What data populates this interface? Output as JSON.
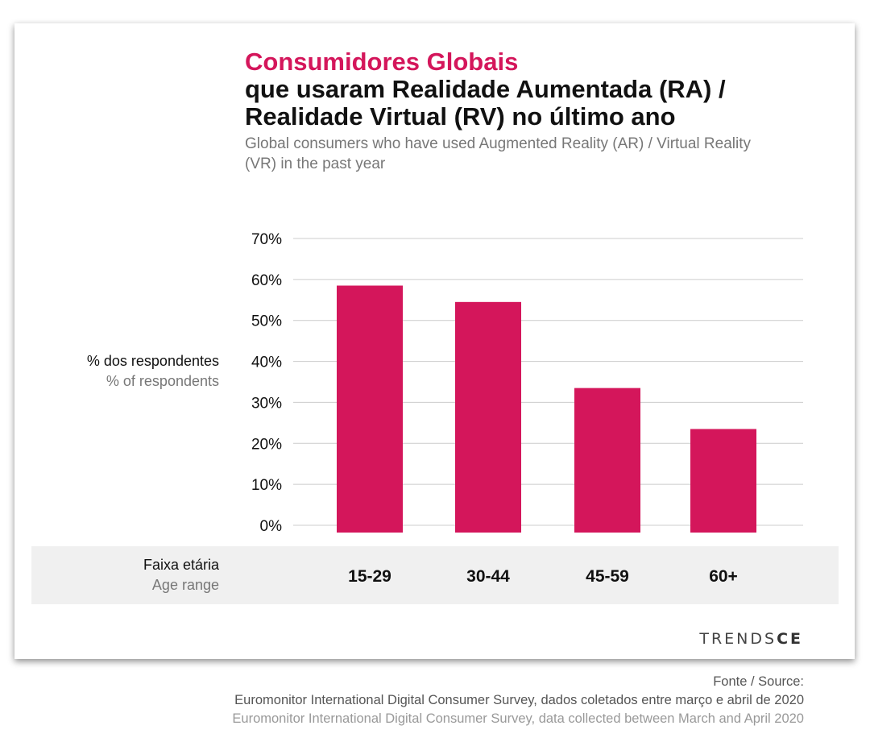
{
  "title": {
    "pt_line1": "Consumidores Globais",
    "pt_line2": "que usaram Realidade Aumentada (RA) / Realidade Virtual (RV) no último ano",
    "en": "Global consumers who have used Augmented Reality (AR) / Virtual Reality (VR) in the past year"
  },
  "y_axis_label": {
    "pt": "% dos respondentes",
    "en": "% of respondents"
  },
  "x_axis_label": {
    "pt": "Faixa etária",
    "en": "Age range"
  },
  "logo": {
    "light": "TRENDS",
    "bold": "CE"
  },
  "source": {
    "heading": "Fonte / Source:",
    "pt": "Euromonitor International Digital Consumer Survey, dados coletados entre março e abril de 2020",
    "en": "Euromonitor International Digital Consumer Survey, data collected between March and April 2020"
  },
  "colors": {
    "accent": "#d4165b",
    "grid": "#cccccc",
    "band": "#f0f0f0"
  },
  "chart_data": {
    "type": "bar",
    "categories": [
      "15-29",
      "30-44",
      "45-59",
      "60+"
    ],
    "values": [
      58.5,
      54.5,
      33.5,
      23.5
    ],
    "yticks": [
      "0%",
      "10%",
      "20%",
      "30%",
      "40%",
      "50%",
      "60%",
      "70%"
    ],
    "ylim": [
      0,
      70
    ],
    "grid": true
  }
}
